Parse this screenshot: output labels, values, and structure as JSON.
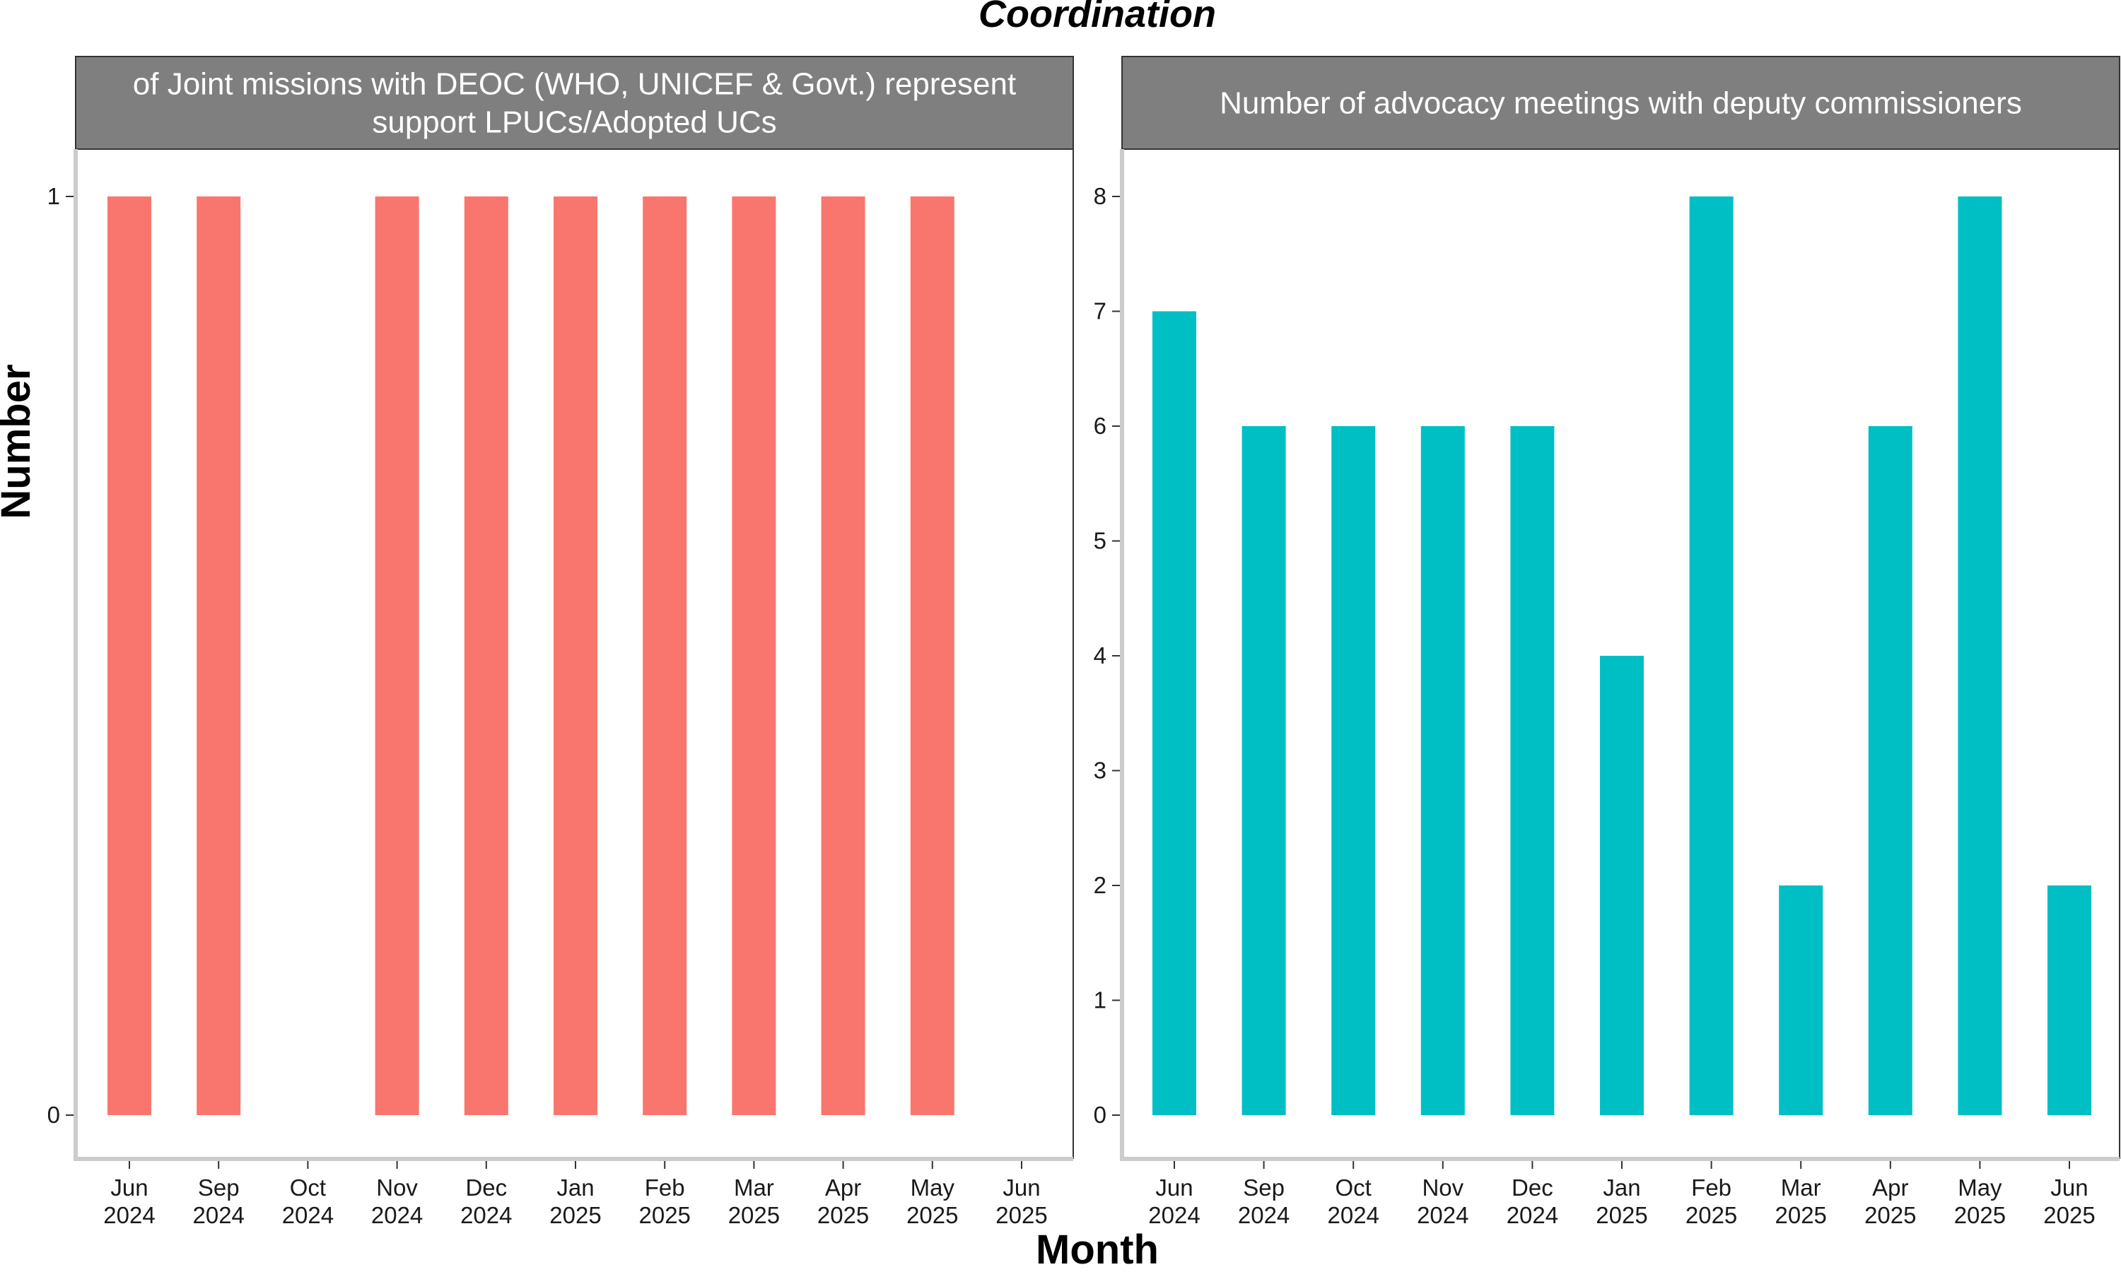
{
  "title": "Coordination",
  "xlabel": "Month",
  "ylabel": "Number",
  "chart_data": [
    {
      "type": "bar",
      "panel_title": [
        "of Joint missions with DEOC (WHO, UNICEF & Govt.) represent",
        "support LPUCs/Adopted UCs"
      ],
      "color": "#F8766D",
      "categories": [
        [
          "Jun",
          "2024"
        ],
        [
          "Sep",
          "2024"
        ],
        [
          "Oct",
          "2024"
        ],
        [
          "Nov",
          "2024"
        ],
        [
          "Dec",
          "2024"
        ],
        [
          "Jan",
          "2025"
        ],
        [
          "Feb",
          "2025"
        ],
        [
          "Mar",
          "2025"
        ],
        [
          "Apr",
          "2025"
        ],
        [
          "May",
          "2025"
        ],
        [
          "Jun",
          "2025"
        ]
      ],
      "values": [
        1,
        1,
        null,
        1,
        1,
        1,
        1,
        1,
        1,
        1,
        null
      ],
      "ylim": [
        0,
        1
      ],
      "yticks": [
        "0",
        "1"
      ]
    },
    {
      "type": "bar",
      "panel_title": [
        "Number of advocacy meetings with deputy commissioners"
      ],
      "color": "#00BFC4",
      "categories": [
        [
          "Jun",
          "2024"
        ],
        [
          "Sep",
          "2024"
        ],
        [
          "Oct",
          "2024"
        ],
        [
          "Nov",
          "2024"
        ],
        [
          "Dec",
          "2024"
        ],
        [
          "Jan",
          "2025"
        ],
        [
          "Feb",
          "2025"
        ],
        [
          "Mar",
          "2025"
        ],
        [
          "Apr",
          "2025"
        ],
        [
          "May",
          "2025"
        ],
        [
          "Jun",
          "2025"
        ]
      ],
      "values": [
        7,
        6,
        6,
        6,
        6,
        4,
        8,
        2,
        6,
        8,
        2
      ],
      "ylim": [
        0,
        8
      ],
      "yticks": [
        "0",
        "1",
        "2",
        "3",
        "4",
        "5",
        "6",
        "7",
        "8"
      ]
    }
  ]
}
